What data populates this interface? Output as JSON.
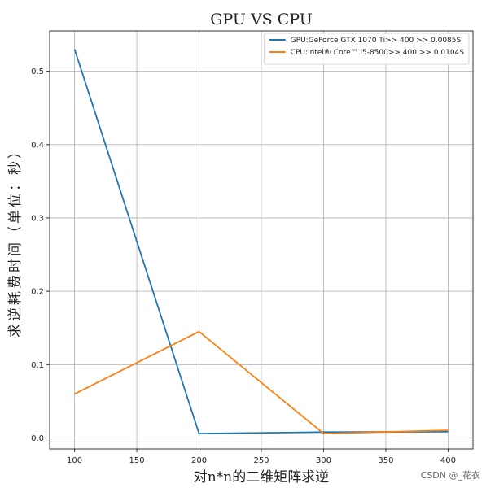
{
  "chart_data": {
    "type": "line",
    "title": "GPU VS CPU",
    "xlabel": "对n*n的二维矩阵求逆",
    "ylabel": "求逆耗费时间（单位：秒）",
    "x": [
      100,
      200,
      300,
      400
    ],
    "xlim": [
      80,
      420
    ],
    "ylim": [
      -0.015,
      0.555
    ],
    "xticks": [
      100,
      150,
      200,
      250,
      300,
      350,
      400
    ],
    "yticks": [
      0.0,
      0.1,
      0.2,
      0.3,
      0.4,
      0.5
    ],
    "ytick_labels": [
      "0.0",
      "0.1",
      "0.2",
      "0.3",
      "0.4",
      "0.5"
    ],
    "grid": true,
    "legend_position": "top-right",
    "series": [
      {
        "name": "GPU:GeForce GTX 1070 Ti>> 400 >> 0.0085S",
        "color": "#1f77b4",
        "values": [
          0.53,
          0.006,
          0.008,
          0.0085
        ]
      },
      {
        "name": "CPU:Intel® Core™ i5-8500>> 400 >> 0.0104S",
        "color": "#ff7f0e",
        "values": [
          0.06,
          0.145,
          0.006,
          0.0104
        ]
      }
    ]
  },
  "watermark": "CSDN @_花衣"
}
